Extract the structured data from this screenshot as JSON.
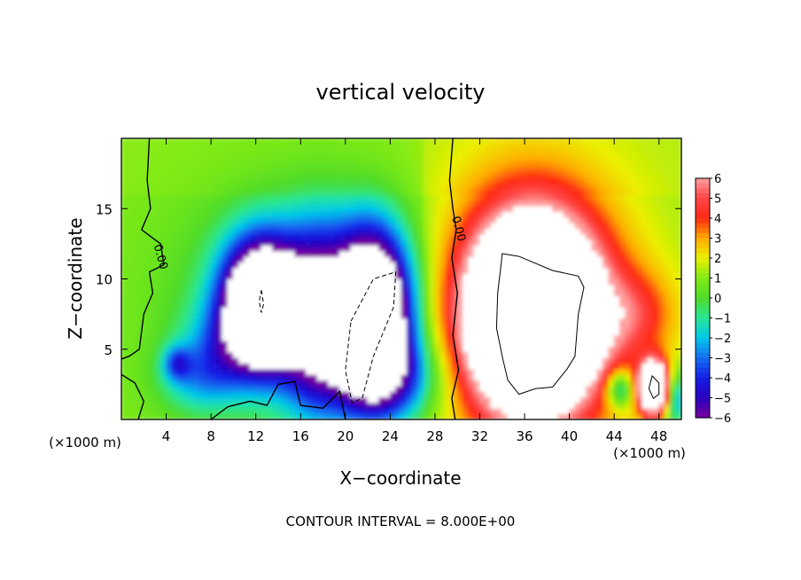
{
  "chart_data": {
    "type": "heatmap",
    "title": "vertical velocity",
    "xlabel": "X−coordinate",
    "ylabel": "Z−coordinate",
    "x_unit_left": "(×1000 m)",
    "x_unit_right": "(×1000 m)",
    "xlim": [
      0,
      50
    ],
    "ylim": [
      0,
      20
    ],
    "x_ticks": [
      4,
      8,
      12,
      16,
      20,
      24,
      28,
      32,
      36,
      40,
      44,
      48
    ],
    "y_ticks": [
      5,
      10,
      15
    ],
    "colorbar": {
      "ticks": [
        6,
        5,
        4,
        3,
        2,
        1,
        0,
        -1,
        -2,
        -3,
        -4,
        -5,
        -6
      ],
      "tick_labels": [
        "6",
        "5",
        "4",
        "3",
        "2",
        "1",
        "0",
        "−1",
        "−2",
        "−3",
        "−4",
        "−5",
        "−6"
      ],
      "range": [
        -6,
        6
      ],
      "saturated_beyond_range": "white"
    },
    "contour_labels": [
      {
        "text": "0.00",
        "x": 3.2,
        "y": 11.5
      },
      {
        "text": "0.00",
        "x": 29.8,
        "y": 13.5
      }
    ],
    "features": [
      {
        "name": "downdraft-left",
        "x_center": 12.5,
        "z_center": 8.5,
        "value": -8.0,
        "x_range": [
          10.5,
          14.5
        ],
        "z_range": [
          5.5,
          11.8
        ]
      },
      {
        "name": "downdraft-center",
        "x_center": 22.0,
        "z_center": 7.5,
        "value": -8.0,
        "x_range": [
          19.0,
          25.5
        ],
        "z_range": [
          1.0,
          12.0
        ]
      },
      {
        "name": "updraft-main",
        "x_center": 36.8,
        "z_center": 7.3,
        "value": 8.0,
        "x_range": [
          31.5,
          42.0
        ],
        "z_range": [
          2.0,
          13.8
        ]
      },
      {
        "name": "updraft-small",
        "x_center": 47.5,
        "z_center": 2.2,
        "value": 8.0,
        "x_range": [
          46.8,
          48.2
        ],
        "z_range": [
          1.2,
          3.2
        ]
      }
    ],
    "footnote": "CONTOUR INTERVAL = 8.000E+00"
  }
}
